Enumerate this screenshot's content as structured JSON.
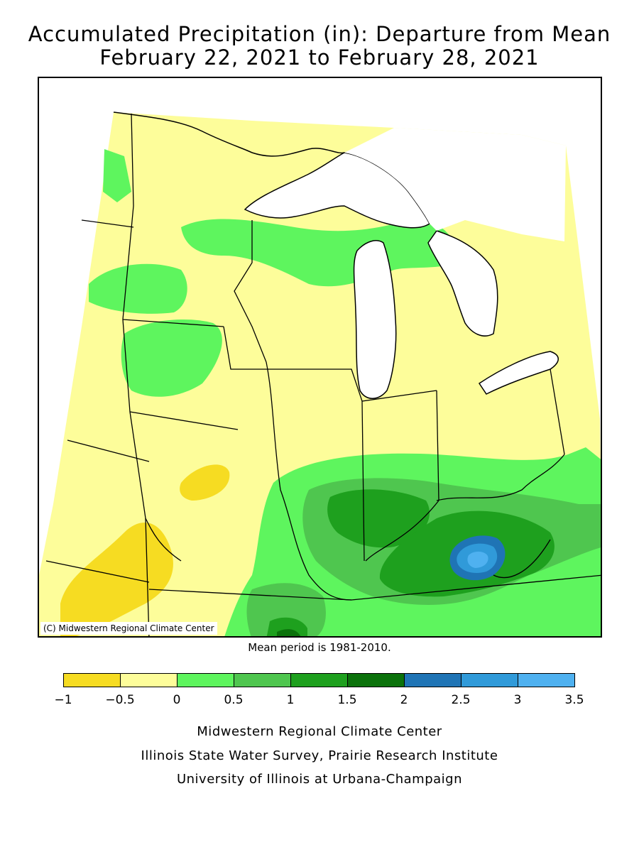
{
  "title": {
    "line1": "Accumulated Precipitation (in): Departure from Mean",
    "line2": "February 22, 2021 to February 28, 2021"
  },
  "map": {
    "copyright": "(C) Midwestern Regional Climate Center",
    "mean_note": "Mean period is 1981-2010."
  },
  "legend": {
    "colors": [
      "#f6dc22",
      "#fdfd9a",
      "#5ef55e",
      "#4fc64f",
      "#1ea01e",
      "#0b720b",
      "#1f74b5",
      "#309ad9",
      "#4fb1f0"
    ],
    "ticks": [
      "−1",
      "−0.5",
      "0",
      "0.5",
      "1",
      "1.5",
      "2",
      "2.5",
      "3",
      "3.5"
    ]
  },
  "footer": {
    "line1": "Midwestern Regional Climate Center",
    "line2": "Illinois State Water Survey, Prairie Research Institute",
    "line3": "University of Illinois at Urbana-Champaign"
  }
}
